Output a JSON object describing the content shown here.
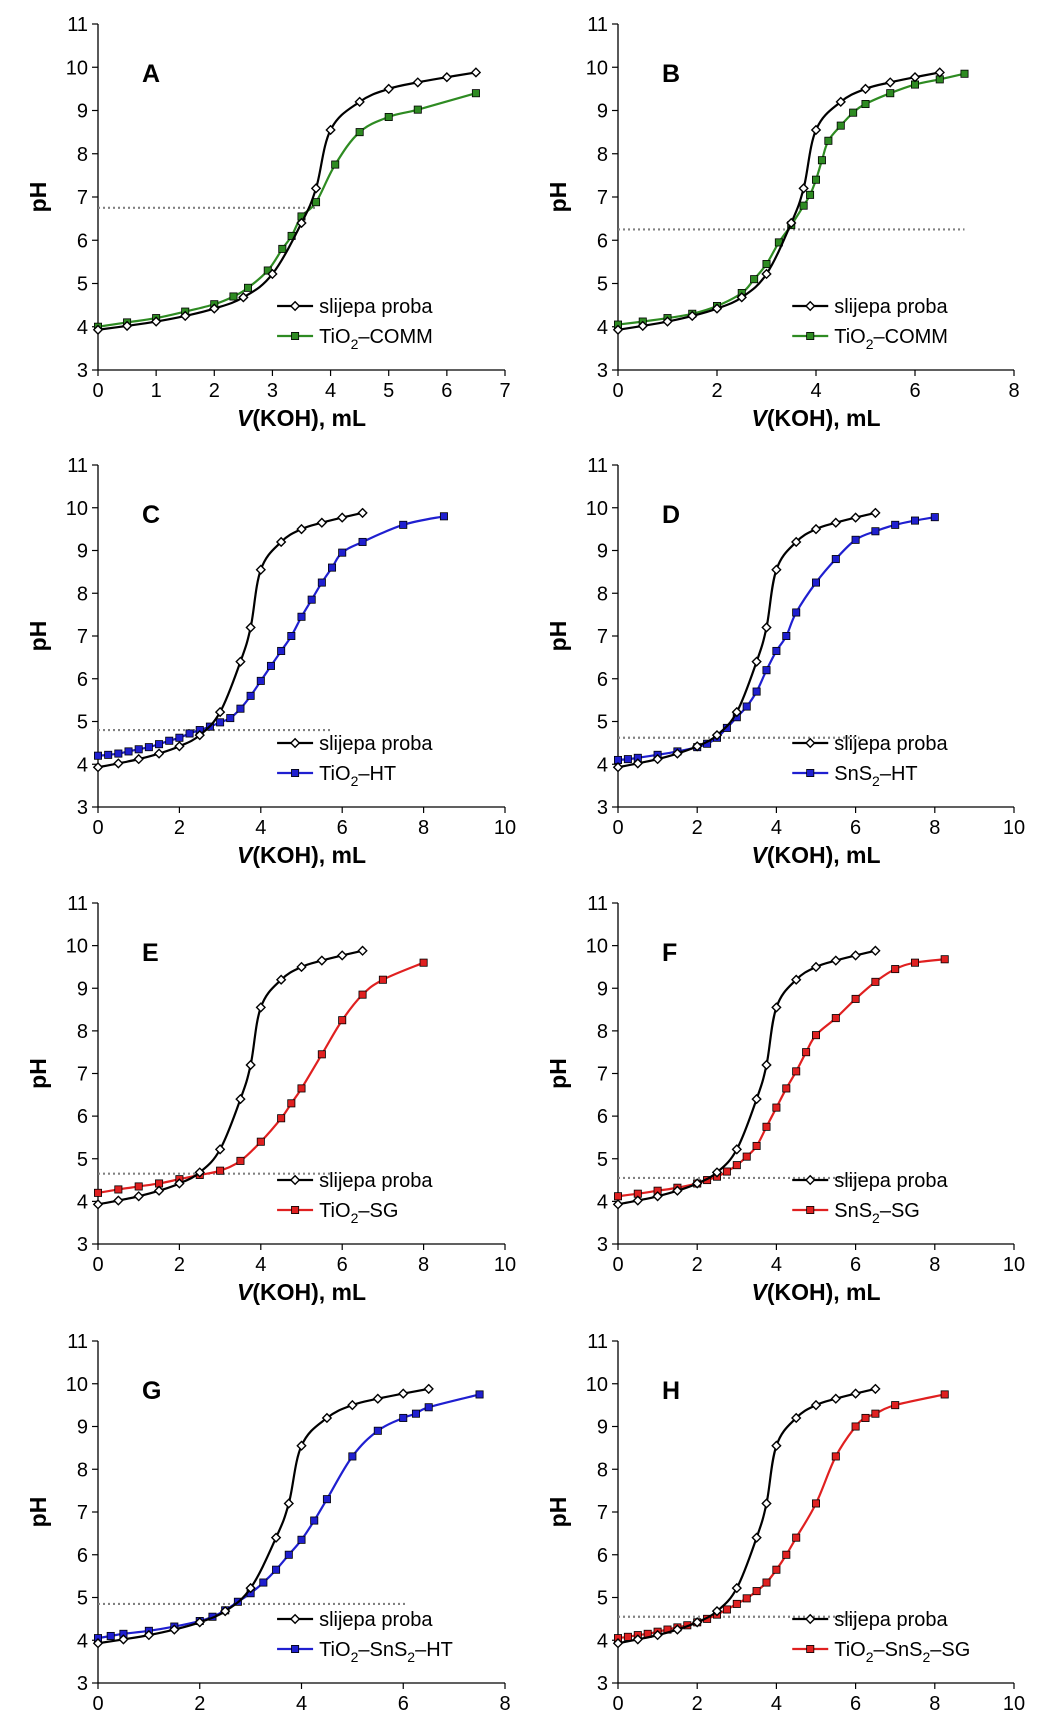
{
  "colors": {
    "blank": "#000000",
    "green": "#2e8b22",
    "blue": "#1f1fd0",
    "red": "#e02020",
    "dotted": "#808080"
  },
  "y_label": "pH",
  "x_label_italic": "V",
  "x_label_rest": "(KOH), mL",
  "chart_data": [
    {
      "panel": "A",
      "type": "line",
      "xlim": [
        0,
        7
      ],
      "xticks": [
        0,
        1,
        2,
        3,
        4,
        5,
        6,
        7
      ],
      "ylim": [
        3,
        11
      ],
      "yticks": [
        3,
        4,
        5,
        6,
        7,
        8,
        9,
        10,
        11
      ],
      "ph_line": {
        "value": 6.75,
        "x_end": 3.75
      },
      "series": [
        {
          "name": "slijepa proba",
          "color": "blank",
          "marker": "diamond",
          "x": [
            0,
            0.5,
            1,
            1.5,
            2,
            2.5,
            3,
            3.5,
            3.75,
            4,
            4.5,
            5,
            5.5,
            6,
            6.5
          ],
          "y": [
            3.93,
            4.02,
            4.12,
            4.25,
            4.42,
            4.68,
            5.22,
            6.4,
            7.2,
            8.55,
            9.2,
            9.5,
            9.65,
            9.77,
            9.88
          ]
        },
        {
          "name_main": "TiO",
          "name_sub": "2",
          "name_rest": "–COMM",
          "color": "green",
          "marker": "square",
          "x": [
            0,
            0.5,
            1,
            1.5,
            2,
            2.33,
            2.58,
            2.92,
            3.17,
            3.33,
            3.5,
            3.75,
            4.08,
            4.5,
            5,
            5.5,
            6.5
          ],
          "y": [
            4.0,
            4.1,
            4.2,
            4.35,
            4.52,
            4.7,
            4.9,
            5.3,
            5.8,
            6.1,
            6.55,
            6.88,
            7.75,
            8.5,
            8.85,
            9.02,
            9.4
          ]
        }
      ]
    },
    {
      "panel": "B",
      "type": "line",
      "xlim": [
        0,
        8
      ],
      "xticks": [
        0,
        2,
        4,
        6,
        8
      ],
      "ylim": [
        3,
        11
      ],
      "yticks": [
        3,
        4,
        5,
        6,
        7,
        8,
        9,
        10,
        11
      ],
      "ph_line": {
        "value": 6.25,
        "x_end": 7.0
      },
      "series": [
        {
          "name": "slijepa proba",
          "color": "blank",
          "marker": "diamond",
          "x": [
            0,
            0.5,
            1,
            1.5,
            2,
            2.5,
            3,
            3.5,
            3.75,
            4,
            4.5,
            5,
            5.5,
            6,
            6.5
          ],
          "y": [
            3.93,
            4.02,
            4.12,
            4.25,
            4.42,
            4.68,
            5.22,
            6.4,
            7.2,
            8.55,
            9.2,
            9.5,
            9.65,
            9.77,
            9.88
          ]
        },
        {
          "name_main": "TiO",
          "name_sub": "2",
          "name_rest": "–COMM",
          "color": "green",
          "marker": "square",
          "x": [
            0,
            0.5,
            1,
            1.5,
            2,
            2.5,
            2.75,
            3,
            3.25,
            3.5,
            3.75,
            3.88,
            4,
            4.12,
            4.25,
            4.5,
            4.75,
            5,
            5.5,
            6,
            6.5,
            7
          ],
          "y": [
            4.05,
            4.12,
            4.2,
            4.3,
            4.48,
            4.78,
            5.1,
            5.45,
            5.95,
            6.35,
            6.8,
            7.05,
            7.4,
            7.85,
            8.3,
            8.65,
            8.95,
            9.15,
            9.4,
            9.6,
            9.72,
            9.85
          ]
        }
      ]
    },
    {
      "panel": "C",
      "type": "line",
      "xlim": [
        0,
        10
      ],
      "xticks": [
        0,
        2,
        4,
        6,
        8,
        10
      ],
      "ylim": [
        3,
        11
      ],
      "yticks": [
        3,
        4,
        5,
        6,
        7,
        8,
        9,
        10,
        11
      ],
      "ph_line": {
        "value": 4.8,
        "x_end": 5.75
      },
      "series": [
        {
          "name": "slijepa proba",
          "color": "blank",
          "marker": "diamond",
          "x": [
            0,
            0.5,
            1,
            1.5,
            2,
            2.5,
            3,
            3.5,
            3.75,
            4,
            4.5,
            5,
            5.5,
            6,
            6.5
          ],
          "y": [
            3.93,
            4.02,
            4.12,
            4.25,
            4.42,
            4.68,
            5.22,
            6.4,
            7.2,
            8.55,
            9.2,
            9.5,
            9.65,
            9.77,
            9.88
          ]
        },
        {
          "name_main": "TiO",
          "name_sub": "2",
          "name_rest": "–HT",
          "color": "blue",
          "marker": "square",
          "x": [
            0,
            0.25,
            0.5,
            0.75,
            1,
            1.25,
            1.5,
            1.75,
            2,
            2.25,
            2.5,
            2.75,
            3,
            3.25,
            3.5,
            3.75,
            4,
            4.25,
            4.5,
            4.75,
            5,
            5.25,
            5.5,
            5.75,
            6,
            6.5,
            7.5,
            8.5
          ],
          "y": [
            4.2,
            4.22,
            4.25,
            4.3,
            4.35,
            4.4,
            4.47,
            4.55,
            4.62,
            4.72,
            4.8,
            4.88,
            4.98,
            5.08,
            5.3,
            5.6,
            5.95,
            6.3,
            6.65,
            7.0,
            7.45,
            7.85,
            8.25,
            8.6,
            8.95,
            9.2,
            9.6,
            9.8
          ]
        }
      ]
    },
    {
      "panel": "D",
      "type": "line",
      "xlim": [
        0,
        10
      ],
      "xticks": [
        0,
        2,
        4,
        6,
        8,
        10
      ],
      "ylim": [
        3,
        11
      ],
      "yticks": [
        3,
        4,
        5,
        6,
        7,
        8,
        9,
        10,
        11
      ],
      "ph_line": {
        "value": 4.62,
        "x_end": 6.1
      },
      "series": [
        {
          "name": "slijepa proba",
          "color": "blank",
          "marker": "diamond",
          "x": [
            0,
            0.5,
            1,
            1.5,
            2,
            2.5,
            3,
            3.5,
            3.75,
            4,
            4.5,
            5,
            5.5,
            6,
            6.5
          ],
          "y": [
            3.93,
            4.02,
            4.12,
            4.25,
            4.42,
            4.68,
            5.22,
            6.4,
            7.2,
            8.55,
            9.2,
            9.5,
            9.65,
            9.77,
            9.88
          ]
        },
        {
          "name_main": "SnS",
          "name_sub": "2",
          "name_rest": "–HT",
          "color": "blue",
          "marker": "square",
          "x": [
            0,
            0.25,
            0.5,
            1,
            1.5,
            2,
            2.25,
            2.5,
            2.75,
            3,
            3.25,
            3.5,
            3.75,
            4,
            4.25,
            4.5,
            5,
            5.5,
            6,
            6.5,
            7,
            7.5,
            8
          ],
          "y": [
            4.1,
            4.12,
            4.15,
            4.22,
            4.3,
            4.4,
            4.48,
            4.62,
            4.85,
            5.1,
            5.35,
            5.7,
            6.2,
            6.65,
            7.0,
            7.55,
            8.25,
            8.8,
            9.25,
            9.45,
            9.6,
            9.7,
            9.78
          ]
        }
      ]
    },
    {
      "panel": "E",
      "type": "line",
      "xlim": [
        0,
        10
      ],
      "xticks": [
        0,
        2,
        4,
        6,
        8,
        10
      ],
      "ylim": [
        3,
        11
      ],
      "yticks": [
        3,
        4,
        5,
        6,
        7,
        8,
        9,
        10,
        11
      ],
      "ph_line": {
        "value": 4.65,
        "x_end": 5.75
      },
      "series": [
        {
          "name": "slijepa proba",
          "color": "blank",
          "marker": "diamond",
          "x": [
            0,
            0.5,
            1,
            1.5,
            2,
            2.5,
            3,
            3.5,
            3.75,
            4,
            4.5,
            5,
            5.5,
            6,
            6.5
          ],
          "y": [
            3.93,
            4.02,
            4.12,
            4.25,
            4.42,
            4.68,
            5.22,
            6.4,
            7.2,
            8.55,
            9.2,
            9.5,
            9.65,
            9.77,
            9.88
          ]
        },
        {
          "name_main": "TiO",
          "name_sub": "2",
          "name_rest": "–SG",
          "color": "red",
          "marker": "square",
          "x": [
            0,
            0.5,
            1,
            1.5,
            2,
            2.5,
            3,
            3.5,
            4,
            4.5,
            4.75,
            5,
            5.5,
            6,
            6.5,
            7,
            8
          ],
          "y": [
            4.2,
            4.28,
            4.35,
            4.42,
            4.52,
            4.62,
            4.72,
            4.95,
            5.4,
            5.95,
            6.3,
            6.65,
            7.45,
            8.25,
            8.85,
            9.2,
            9.6
          ]
        }
      ]
    },
    {
      "panel": "F",
      "type": "line",
      "xlim": [
        0,
        10
      ],
      "xticks": [
        0,
        2,
        4,
        6,
        8,
        10
      ],
      "ylim": [
        3,
        11
      ],
      "yticks": [
        3,
        4,
        5,
        6,
        7,
        8,
        9,
        10,
        11
      ],
      "ph_line": {
        "value": 4.55,
        "x_end": 6.1
      },
      "series": [
        {
          "name": "slijepa proba",
          "color": "blank",
          "marker": "diamond",
          "x": [
            0,
            0.5,
            1,
            1.5,
            2,
            2.5,
            3,
            3.5,
            3.75,
            4,
            4.5,
            5,
            5.5,
            6,
            6.5
          ],
          "y": [
            3.93,
            4.02,
            4.12,
            4.25,
            4.42,
            4.68,
            5.22,
            6.4,
            7.2,
            8.55,
            9.2,
            9.5,
            9.65,
            9.77,
            9.88
          ]
        },
        {
          "name_main": "SnS",
          "name_sub": "2",
          "name_rest": "–SG",
          "color": "red",
          "marker": "square",
          "x": [
            0,
            0.5,
            1,
            1.5,
            2,
            2.25,
            2.5,
            2.75,
            3,
            3.25,
            3.5,
            3.75,
            4,
            4.25,
            4.5,
            4.75,
            5,
            5.5,
            6,
            6.5,
            7,
            7.5,
            8.25
          ],
          "y": [
            4.12,
            4.18,
            4.25,
            4.32,
            4.42,
            4.5,
            4.58,
            4.7,
            4.85,
            5.05,
            5.3,
            5.75,
            6.2,
            6.65,
            7.05,
            7.5,
            7.9,
            8.3,
            8.75,
            9.15,
            9.45,
            9.6,
            9.68
          ]
        }
      ]
    },
    {
      "panel": "G",
      "type": "line",
      "xlim": [
        0,
        8
      ],
      "xticks": [
        0,
        2,
        4,
        6,
        8
      ],
      "ylim": [
        3,
        11
      ],
      "yticks": [
        3,
        4,
        5,
        6,
        7,
        8,
        9,
        10,
        11
      ],
      "ph_line": {
        "value": 4.85,
        "x_end": 6.05
      },
      "series": [
        {
          "name": "slijepa proba",
          "color": "blank",
          "marker": "diamond",
          "x": [
            0,
            0.5,
            1,
            1.5,
            2,
            2.5,
            3,
            3.5,
            3.75,
            4,
            4.5,
            5,
            5.5,
            6,
            6.5
          ],
          "y": [
            3.93,
            4.02,
            4.12,
            4.25,
            4.42,
            4.68,
            5.22,
            6.4,
            7.2,
            8.55,
            9.2,
            9.5,
            9.65,
            9.77,
            9.88
          ]
        },
        {
          "name_main": "TiO",
          "name_sub": "2",
          "name_rest": "–SnS",
          "name_sub2": "2",
          "name_rest2": "–HT",
          "color": "blue",
          "marker": "square",
          "x": [
            0,
            0.25,
            0.5,
            1,
            1.5,
            2,
            2.25,
            2.5,
            2.75,
            3,
            3.25,
            3.5,
            3.75,
            4,
            4.25,
            4.5,
            5,
            5.5,
            6,
            6.25,
            6.5,
            7.5
          ],
          "y": [
            4.05,
            4.1,
            4.15,
            4.22,
            4.32,
            4.45,
            4.55,
            4.7,
            4.9,
            5.1,
            5.35,
            5.65,
            6.0,
            6.35,
            6.8,
            7.3,
            8.3,
            8.9,
            9.2,
            9.3,
            9.45,
            9.75
          ]
        }
      ]
    },
    {
      "panel": "H",
      "type": "line",
      "xlim": [
        0,
        10
      ],
      "xticks": [
        0,
        2,
        4,
        6,
        8,
        10
      ],
      "ylim": [
        3,
        11
      ],
      "yticks": [
        3,
        4,
        5,
        6,
        7,
        8,
        9,
        10,
        11
      ],
      "ph_line": {
        "value": 4.55,
        "x_end": 6.05
      },
      "series": [
        {
          "name": "slijepa proba",
          "color": "blank",
          "marker": "diamond",
          "x": [
            0,
            0.5,
            1,
            1.5,
            2,
            2.5,
            3,
            3.5,
            3.75,
            4,
            4.5,
            5,
            5.5,
            6,
            6.5
          ],
          "y": [
            3.93,
            4.02,
            4.12,
            4.25,
            4.42,
            4.68,
            5.22,
            6.4,
            7.2,
            8.55,
            9.2,
            9.5,
            9.65,
            9.77,
            9.88
          ]
        },
        {
          "name_main": "TiO",
          "name_sub": "2",
          "name_rest": "–SnS",
          "name_sub2": "2",
          "name_rest2": "–SG",
          "color": "red",
          "marker": "square",
          "x": [
            0,
            0.25,
            0.5,
            0.75,
            1,
            1.25,
            1.5,
            1.75,
            2,
            2.25,
            2.5,
            2.75,
            3,
            3.25,
            3.5,
            3.75,
            4,
            4.25,
            4.5,
            5,
            5.5,
            6,
            6.25,
            6.5,
            7,
            8.25
          ],
          "y": [
            4.05,
            4.08,
            4.12,
            4.15,
            4.2,
            4.25,
            4.3,
            4.35,
            4.42,
            4.5,
            4.6,
            4.72,
            4.85,
            4.98,
            5.15,
            5.35,
            5.65,
            6.0,
            6.4,
            7.2,
            8.3,
            9.0,
            9.2,
            9.3,
            9.5,
            9.75
          ]
        }
      ]
    }
  ]
}
